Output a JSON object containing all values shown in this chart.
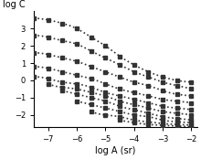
{
  "title": "",
  "xlabel": "log A (sr)",
  "ylabel": "log C",
  "xlim": [
    -7.5,
    -1.8
  ],
  "ylim": [
    -2.7,
    4.0
  ],
  "xticks": [
    -7,
    -6,
    -5,
    -4,
    -3,
    -2
  ],
  "yticks": [
    -2,
    -1,
    0,
    1,
    2,
    3
  ],
  "background_luminances_log": [
    3,
    2,
    1,
    0,
    -1,
    -2,
    -3,
    -4,
    -5,
    -6
  ],
  "curves": [
    {
      "log_L": 3,
      "points": [
        [
          -7.5,
          3.6
        ],
        [
          -7,
          3.5
        ],
        [
          -6.5,
          3.3
        ],
        [
          -6,
          3.0
        ],
        [
          -5.5,
          2.5
        ],
        [
          -5,
          2.0
        ],
        [
          -4.5,
          1.4
        ],
        [
          -4,
          0.9
        ],
        [
          -3.5,
          0.5
        ],
        [
          -3,
          0.2
        ],
        [
          -2.5,
          0.0
        ],
        [
          -2,
          -0.1
        ]
      ]
    },
    {
      "log_L": 2,
      "points": [
        [
          -7.5,
          2.6
        ],
        [
          -7,
          2.5
        ],
        [
          -6.5,
          2.3
        ],
        [
          -6,
          2.1
        ],
        [
          -5.5,
          1.7
        ],
        [
          -5,
          1.3
        ],
        [
          -4.5,
          0.9
        ],
        [
          -4,
          0.5
        ],
        [
          -3.5,
          0.2
        ],
        [
          -3,
          -0.1
        ],
        [
          -2.5,
          -0.3
        ],
        [
          -2,
          -0.5
        ]
      ]
    },
    {
      "log_L": 1,
      "points": [
        [
          -7.5,
          1.6
        ],
        [
          -7,
          1.5
        ],
        [
          -6.5,
          1.3
        ],
        [
          -6,
          1.1
        ],
        [
          -5.5,
          0.8
        ],
        [
          -5,
          0.5
        ],
        [
          -4.5,
          0.2
        ],
        [
          -4,
          -0.1
        ],
        [
          -3.5,
          -0.3
        ],
        [
          -3,
          -0.6
        ],
        [
          -2.5,
          -0.8
        ],
        [
          -2,
          -0.9
        ]
      ]
    },
    {
      "log_L": 0,
      "points": [
        [
          -7.5,
          0.8
        ],
        [
          -7,
          0.7
        ],
        [
          -6.5,
          0.5
        ],
        [
          -6,
          0.3
        ],
        [
          -5.5,
          0.1
        ],
        [
          -5,
          -0.2
        ],
        [
          -4.5,
          -0.5
        ],
        [
          -4,
          -0.7
        ],
        [
          -3.5,
          -0.9
        ],
        [
          -3,
          -1.1
        ],
        [
          -2.5,
          -1.2
        ],
        [
          -2,
          -1.3
        ]
      ]
    },
    {
      "log_L": -1,
      "points": [
        [
          -7.5,
          0.2
        ],
        [
          -7,
          0.1
        ],
        [
          -6.5,
          -0.1
        ],
        [
          -6,
          -0.2
        ],
        [
          -5.5,
          -0.4
        ],
        [
          -5,
          -0.7
        ],
        [
          -4.5,
          -0.9
        ],
        [
          -4,
          -1.1
        ],
        [
          -3.5,
          -1.3
        ],
        [
          -3,
          -1.5
        ],
        [
          -2.5,
          -1.6
        ],
        [
          -2,
          -1.7
        ]
      ]
    },
    {
      "log_L": -2,
      "points": [
        [
          -7.0,
          -0.2
        ],
        [
          -6.5,
          -0.4
        ],
        [
          -6,
          -0.5
        ],
        [
          -5.5,
          -0.7
        ],
        [
          -5,
          -0.9
        ],
        [
          -4.5,
          -1.2
        ],
        [
          -4,
          -1.4
        ],
        [
          -3.5,
          -1.6
        ],
        [
          -3,
          -1.8
        ],
        [
          -2.5,
          -1.9
        ],
        [
          -2,
          -2.0
        ]
      ]
    },
    {
      "log_L": -3,
      "points": [
        [
          -6.5,
          -0.6
        ],
        [
          -6,
          -0.8
        ],
        [
          -5.5,
          -1.0
        ],
        [
          -5,
          -1.2
        ],
        [
          -4.5,
          -1.5
        ],
        [
          -4,
          -1.7
        ],
        [
          -3.5,
          -1.9
        ],
        [
          -3,
          -2.1
        ],
        [
          -2.5,
          -2.2
        ],
        [
          -2,
          -2.3
        ]
      ]
    },
    {
      "log_L": -4,
      "points": [
        [
          -6.0,
          -1.2
        ],
        [
          -5.5,
          -1.4
        ],
        [
          -5,
          -1.6
        ],
        [
          -4.5,
          -1.8
        ],
        [
          -4,
          -2.0
        ],
        [
          -3.5,
          -2.1
        ],
        [
          -3,
          -2.3
        ],
        [
          -2.5,
          -2.4
        ],
        [
          -2,
          -2.45
        ]
      ]
    },
    {
      "log_L": -5,
      "points": [
        [
          -5.5,
          -1.8
        ],
        [
          -5,
          -2.0
        ],
        [
          -4.5,
          -2.1
        ],
        [
          -4,
          -2.3
        ],
        [
          -3.5,
          -2.4
        ],
        [
          -3,
          -2.5
        ],
        [
          -2.5,
          -2.55
        ],
        [
          -2,
          -2.6
        ]
      ]
    },
    {
      "log_L": -6,
      "points": [
        [
          -4.5,
          -2.3
        ],
        [
          -4,
          -2.45
        ],
        [
          -3.5,
          -2.55
        ],
        [
          -3,
          -2.6
        ],
        [
          -2.5,
          -2.65
        ],
        [
          -2,
          -2.68
        ]
      ]
    }
  ],
  "dot_color": "#333333",
  "dot_size": 3.5,
  "line_style": "dotted",
  "line_width": 1.2,
  "axis_color": "#000000",
  "tick_fontsize": 6,
  "label_fontsize": 7
}
